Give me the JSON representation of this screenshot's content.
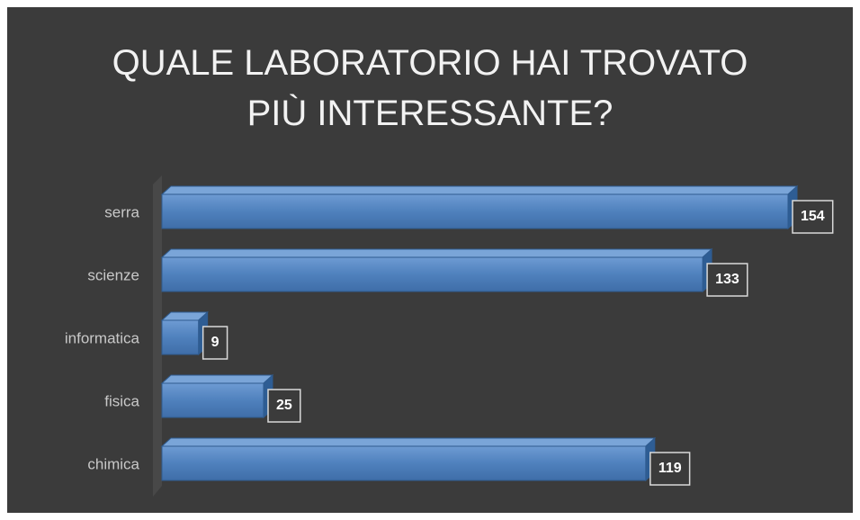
{
  "chart_data": {
    "type": "bar",
    "orientation": "horizontal",
    "title": "QUALE LABORATORIO HAI TROVATO PIÙ INTERESSANTE?",
    "categories": [
      "serra",
      "scienze",
      "informatica",
      "fisica",
      "chimica"
    ],
    "values": [
      154,
      133,
      9,
      25,
      119
    ],
    "color": "#4f81bd"
  }
}
